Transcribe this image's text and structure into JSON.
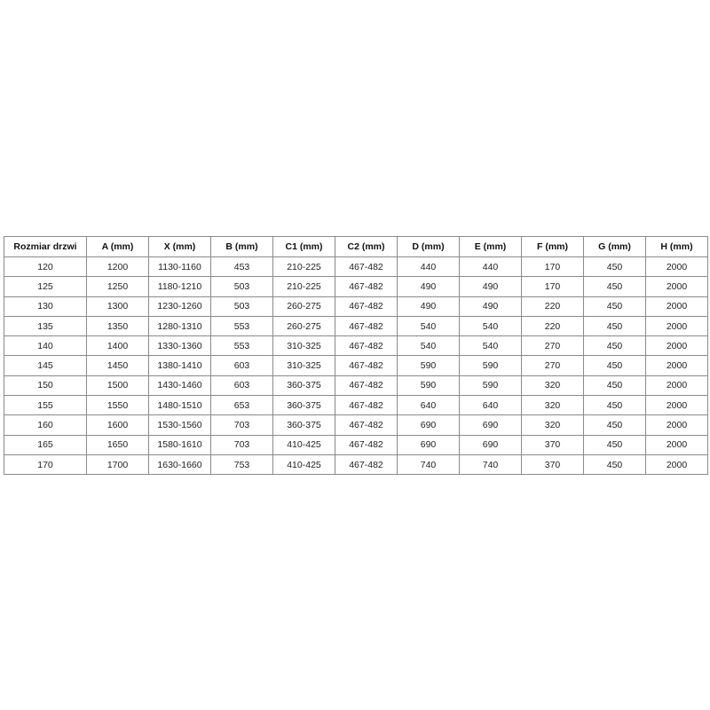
{
  "table": {
    "headers": [
      "Rozmiar drzwi",
      "A (mm)",
      "X (mm)",
      "B (mm)",
      "C1 (mm)",
      "C2 (mm)",
      "D (mm)",
      "E (mm)",
      "F (mm)",
      "G (mm)",
      "H (mm)"
    ],
    "rows": [
      [
        "120",
        "1200",
        "1130-1160",
        "453",
        "210-225",
        "467-482",
        "440",
        "440",
        "170",
        "450",
        "2000"
      ],
      [
        "125",
        "1250",
        "1180-1210",
        "503",
        "210-225",
        "467-482",
        "490",
        "490",
        "170",
        "450",
        "2000"
      ],
      [
        "130",
        "1300",
        "1230-1260",
        "503",
        "260-275",
        "467-482",
        "490",
        "490",
        "220",
        "450",
        "2000"
      ],
      [
        "135",
        "1350",
        "1280-1310",
        "553",
        "260-275",
        "467-482",
        "540",
        "540",
        "220",
        "450",
        "2000"
      ],
      [
        "140",
        "1400",
        "1330-1360",
        "553",
        "310-325",
        "467-482",
        "540",
        "540",
        "270",
        "450",
        "2000"
      ],
      [
        "145",
        "1450",
        "1380-1410",
        "603",
        "310-325",
        "467-482",
        "590",
        "590",
        "270",
        "450",
        "2000"
      ],
      [
        "150",
        "1500",
        "1430-1460",
        "603",
        "360-375",
        "467-482",
        "590",
        "590",
        "320",
        "450",
        "2000"
      ],
      [
        "155",
        "1550",
        "1480-1510",
        "653",
        "360-375",
        "467-482",
        "640",
        "640",
        "320",
        "450",
        "2000"
      ],
      [
        "160",
        "1600",
        "1530-1560",
        "703",
        "360-375",
        "467-482",
        "690",
        "690",
        "320",
        "450",
        "2000"
      ],
      [
        "165",
        "1650",
        "1580-1610",
        "703",
        "410-425",
        "467-482",
        "690",
        "690",
        "370",
        "450",
        "2000"
      ],
      [
        "170",
        "1700",
        "1630-1660",
        "753",
        "410-425",
        "467-482",
        "740",
        "740",
        "370",
        "450",
        "2000"
      ]
    ]
  }
}
